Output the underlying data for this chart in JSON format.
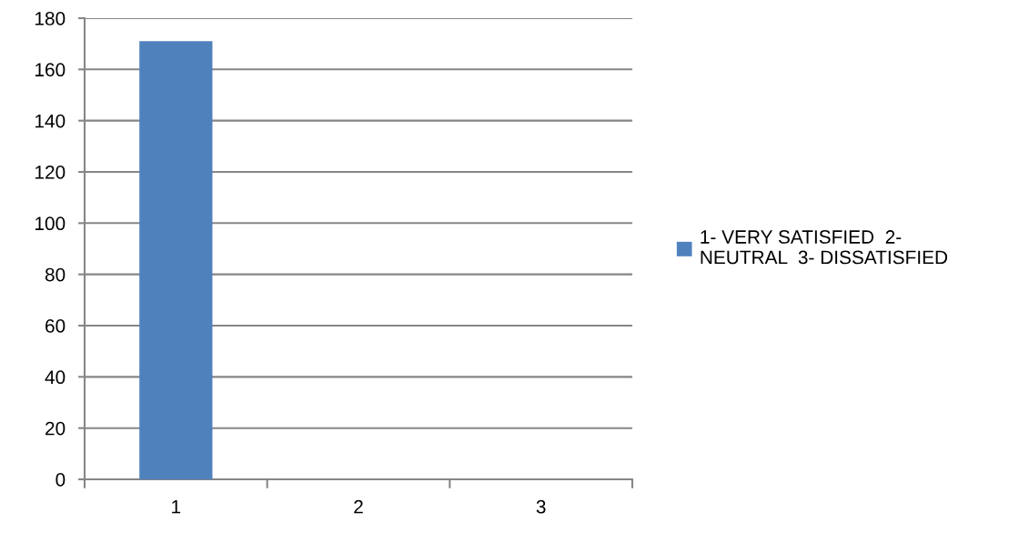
{
  "chart_data": {
    "type": "bar",
    "categories": [
      "1",
      "2",
      "3"
    ],
    "series": [
      {
        "name": "1- VERY SATISFIED  2-\nNEUTRAL  3- DISSATISFIED",
        "color": "#4f81bd",
        "values": [
          171,
          0,
          0
        ]
      }
    ],
    "ylim": [
      0,
      180
    ],
    "yticks": [
      0,
      20,
      40,
      60,
      80,
      100,
      120,
      140,
      160,
      180
    ],
    "grid": "y",
    "legend": "right"
  }
}
